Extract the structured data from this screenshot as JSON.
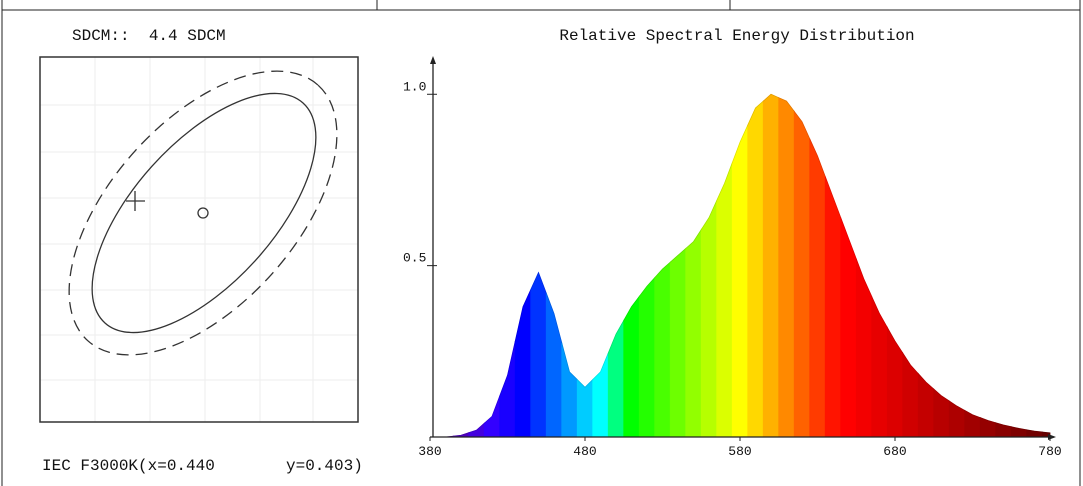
{
  "sdcm_panel": {
    "heading": "SDCM::  4.4 SDCM",
    "footer_left": "IEC F3000K(x=0.440",
    "footer_right": "y=0.403)"
  },
  "chart_data": {
    "type": "area",
    "title": "Relative Spectral Energy Distribution",
    "x": [
      380,
      390,
      400,
      410,
      420,
      430,
      440,
      450,
      460,
      470,
      480,
      490,
      500,
      510,
      520,
      530,
      540,
      550,
      560,
      570,
      580,
      590,
      600,
      610,
      620,
      630,
      640,
      650,
      660,
      670,
      680,
      690,
      700,
      710,
      720,
      730,
      740,
      750,
      760,
      770,
      780
    ],
    "values": [
      0,
      0,
      0.005,
      0.02,
      0.06,
      0.18,
      0.38,
      0.48,
      0.36,
      0.19,
      0.145,
      0.19,
      0.3,
      0.38,
      0.44,
      0.49,
      0.53,
      0.57,
      0.64,
      0.74,
      0.86,
      0.96,
      1.0,
      0.98,
      0.92,
      0.82,
      0.7,
      0.58,
      0.46,
      0.36,
      0.28,
      0.21,
      0.16,
      0.12,
      0.09,
      0.065,
      0.048,
      0.035,
      0.025,
      0.017,
      0.012
    ],
    "xlim": [
      380,
      780
    ],
    "xticks": [
      380,
      480,
      580,
      680,
      780
    ],
    "ylim": [
      0,
      1.1
    ],
    "yticks": [
      {
        "value": 0.5,
        "label": "0.5"
      },
      {
        "value": 1,
        "label": "1.0"
      }
    ],
    "color": "spectral"
  }
}
